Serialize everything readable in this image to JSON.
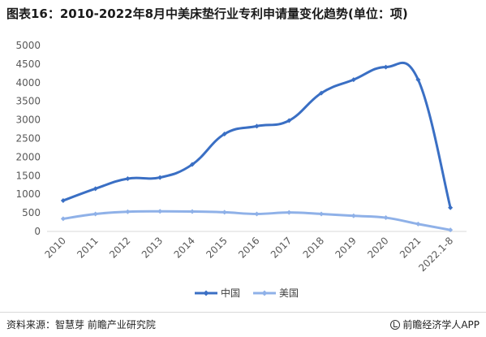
{
  "title": "图表16：2010-2022年8月中美床垫行业专利申请量变化趋势(单位：项)",
  "source": "资料来源：智慧芽 前瞻产业研究院",
  "brand": "前瞻经济学人APP",
  "chart_data": {
    "type": "line",
    "title": "",
    "xlabel": "",
    "ylabel": "",
    "categories": [
      "2010",
      "2011",
      "2012",
      "2013",
      "2014",
      "2015",
      "2016",
      "2017",
      "2018",
      "2019",
      "2020",
      "2021",
      "2022.1-8"
    ],
    "ylim": [
      0,
      5000
    ],
    "yticks": [
      0,
      500,
      1000,
      1500,
      2000,
      2500,
      3000,
      3500,
      4000,
      4500,
      5000
    ],
    "grid": false,
    "legend": "bottom-center",
    "series": [
      {
        "name": "中国",
        "color": "#3a6fc4",
        "values": [
          830,
          1150,
          1420,
          1450,
          1800,
          2620,
          2830,
          2980,
          3720,
          4080,
          4420,
          4080,
          640
        ]
      },
      {
        "name": "美国",
        "color": "#8fb1e8",
        "values": [
          340,
          470,
          530,
          540,
          535,
          515,
          470,
          510,
          470,
          420,
          370,
          200,
          40
        ]
      }
    ]
  }
}
